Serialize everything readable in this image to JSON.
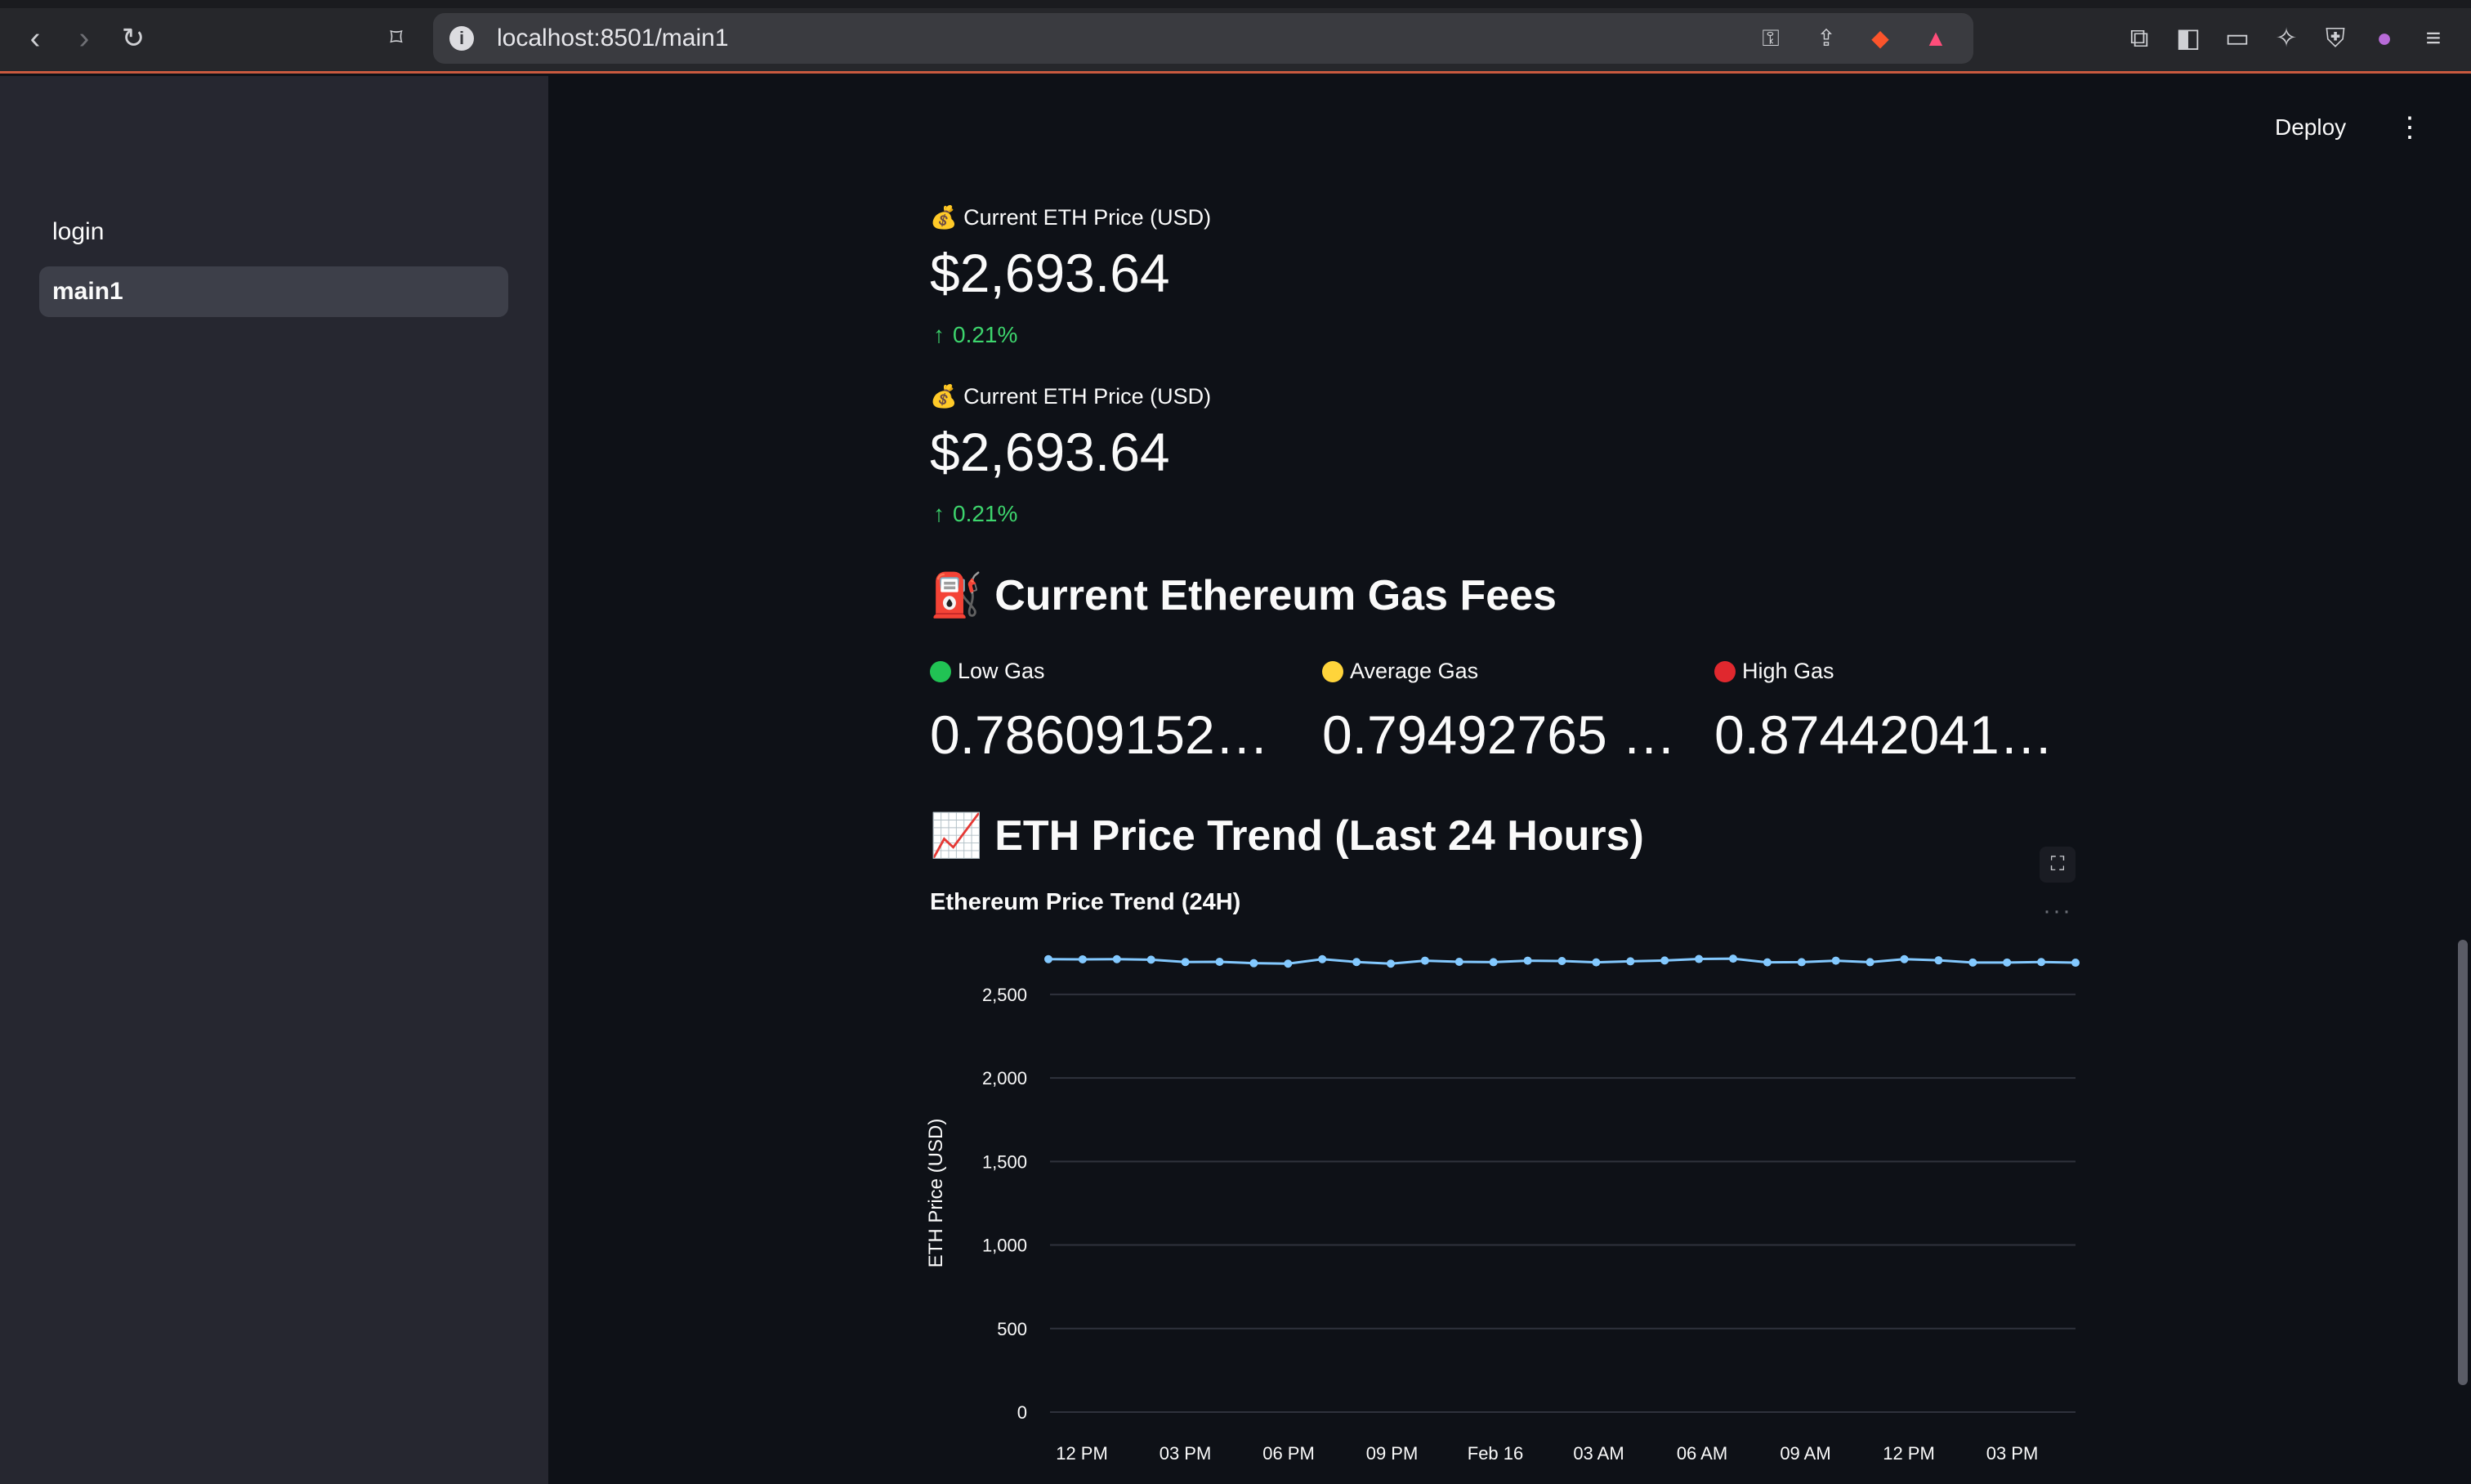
{
  "browser": {
    "url": "localhost:8501/main1"
  },
  "sidebar": {
    "items": [
      {
        "label": "login",
        "active": false
      },
      {
        "label": "main1",
        "active": true
      }
    ]
  },
  "header": {
    "deploy_label": "Deploy"
  },
  "metrics": [
    {
      "label": "💰 Current ETH Price (USD)",
      "value": "$2,693.64",
      "delta": "0.21%"
    },
    {
      "label": "💰 Current ETH Price (USD)",
      "value": "$2,693.64",
      "delta": "0.21%"
    }
  ],
  "gas_section": {
    "title": "⛽ Current Ethereum Gas Fees",
    "items": [
      {
        "label": "Low Gas",
        "value": "0.786091524…",
        "color": "#21c354"
      },
      {
        "label": "Average Gas",
        "value": "0.79492765 …",
        "color": "#ffd43b"
      },
      {
        "label": "High Gas",
        "value": "0.874420415…",
        "color": "#e0282e"
      }
    ]
  },
  "trend_section": {
    "title": "📈 ETH Price Trend (Last 24 Hours)"
  },
  "chart_data": {
    "type": "line",
    "title": "Ethereum Price Trend (24H)",
    "xlabel": "",
    "ylabel": "ETH Price (USD)",
    "ylim": [
      0,
      2700
    ],
    "yticks": [
      0,
      500,
      1000,
      1500,
      2000,
      2500
    ],
    "ytick_labels": [
      "0",
      "500",
      "1,000",
      "1,500",
      "2,000",
      "2,500"
    ],
    "xtick_labels": [
      "12 PM",
      "03 PM",
      "06 PM",
      "09 PM",
      "Feb 16",
      "03 AM",
      "06 AM",
      "09 AM",
      "12 PM",
      "03 PM"
    ],
    "grid": true,
    "color": "#83c9ff",
    "values": [
      2711,
      2710,
      2711,
      2708,
      2694,
      2695,
      2687,
      2684,
      2711,
      2694,
      2684,
      2702,
      2695,
      2693,
      2702,
      2700,
      2692,
      2698,
      2703,
      2712,
      2714,
      2692,
      2693,
      2702,
      2693,
      2711,
      2704,
      2691,
      2691,
      2694,
      2690
    ]
  }
}
